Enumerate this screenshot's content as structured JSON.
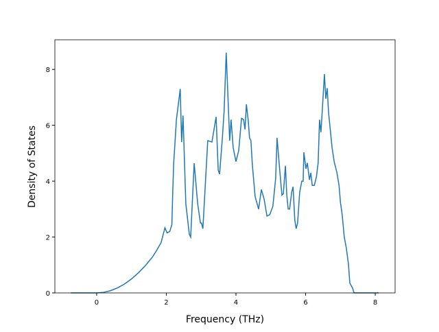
{
  "chart_data": {
    "type": "line",
    "x_label": "Frequency (THz)",
    "y_label": "Density of States",
    "x": [
      -0.74,
      -0.2,
      0,
      0.2,
      0.4,
      0.6,
      0.8,
      1.0,
      1.2,
      1.4,
      1.6,
      1.72,
      1.85,
      1.96,
      2.02,
      2.1,
      2.16,
      2.18,
      2.21,
      2.29,
      2.4,
      2.44,
      2.48,
      2.56,
      2.66,
      2.7,
      2.8,
      2.9,
      2.98,
      3.01,
      3.05,
      3.17,
      3.19,
      3.31,
      3.35,
      3.43,
      3.49,
      3.53,
      3.61,
      3.66,
      3.72,
      3.82,
      3.86,
      3.92,
      4.0,
      4.08,
      4.16,
      4.22,
      4.26,
      4.3,
      4.35,
      4.39,
      4.43,
      4.47,
      4.55,
      4.65,
      4.73,
      4.81,
      4.89,
      4.97,
      5.06,
      5.14,
      5.18,
      5.26,
      5.32,
      5.36,
      5.42,
      5.46,
      5.5,
      5.54,
      5.6,
      5.64,
      5.69,
      5.73,
      5.77,
      5.83,
      5.89,
      5.93,
      5.95,
      6.01,
      6.05,
      6.11,
      6.15,
      6.19,
      6.25,
      6.31,
      6.36,
      6.4,
      6.44,
      6.48,
      6.54,
      6.58,
      6.62,
      6.66,
      6.7,
      6.76,
      6.82,
      6.9,
      6.96,
      7.0,
      7.05,
      7.11,
      7.17,
      7.23,
      7.27,
      7.35,
      7.39,
      8.0,
      8.1
    ],
    "series": [
      {
        "color": "#1f77b4",
        "values": [
          0,
          0,
          0,
          0.02,
          0.08,
          0.18,
          0.32,
          0.5,
          0.72,
          0.98,
          1.28,
          1.52,
          1.8,
          2.33,
          2.15,
          2.2,
          2.45,
          3.4,
          4.6,
          6.2,
          7.3,
          5.4,
          6.35,
          3.2,
          2.1,
          2.0,
          4.64,
          3.2,
          2.5,
          2.5,
          2.3,
          5.0,
          5.45,
          5.4,
          5.7,
          6.3,
          4.4,
          4.25,
          5.55,
          6.5,
          8.6,
          5.45,
          6.2,
          5.2,
          4.7,
          5.1,
          6.25,
          6.2,
          5.85,
          6.75,
          6.2,
          5.55,
          5.45,
          4.6,
          3.45,
          3.0,
          3.7,
          3.35,
          2.75,
          2.8,
          3.1,
          4.1,
          5.55,
          4.35,
          3.5,
          3.55,
          4.55,
          3.5,
          3.0,
          3.0,
          3.6,
          3.8,
          2.6,
          2.3,
          2.5,
          3.6,
          4.0,
          4.0,
          5.03,
          4.45,
          4.65,
          4.05,
          4.3,
          3.85,
          3.85,
          4.15,
          4.65,
          6.2,
          5.75,
          6.55,
          7.83,
          6.95,
          7.33,
          6.45,
          5.95,
          5.2,
          4.7,
          4.3,
          3.85,
          3.25,
          2.8,
          2.0,
          1.6,
          1.03,
          0.35,
          0.17,
          0,
          0,
          0
        ]
      }
    ],
    "xlim": [
      -1.2,
      8.57
    ],
    "ylim": [
      0,
      9.06
    ],
    "xticks": [
      0,
      2,
      4,
      6,
      8
    ],
    "yticks": [
      0,
      2,
      4,
      6,
      8
    ]
  }
}
